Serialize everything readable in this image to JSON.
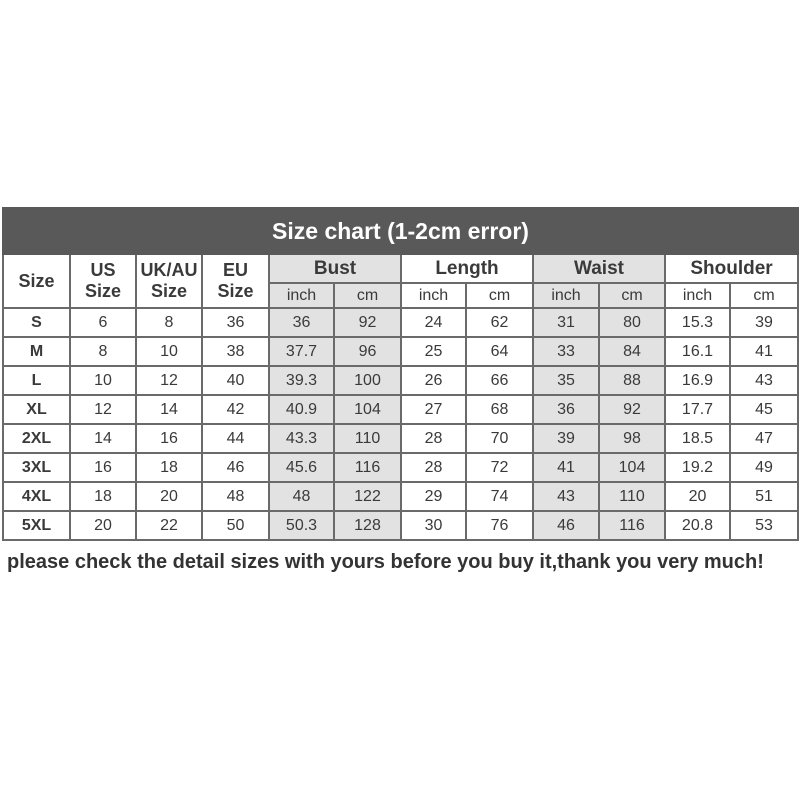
{
  "title": "Size chart (1-2cm error)",
  "headers": {
    "size": "Size",
    "us": [
      "US",
      "Size"
    ],
    "uk": [
      "UK/AU",
      "Size"
    ],
    "eu": [
      "EU",
      "Size"
    ],
    "groups": [
      {
        "label": "Bust",
        "shaded": true
      },
      {
        "label": "Length",
        "shaded": false
      },
      {
        "label": "Waist",
        "shaded": true
      },
      {
        "label": "Shoulder",
        "shaded": false
      }
    ],
    "units": [
      "inch",
      "cm"
    ]
  },
  "colors": {
    "title_bar": "#595959",
    "shade": "#e2e2e2",
    "border": "#6a6a6a"
  },
  "rows": [
    [
      "S",
      "6",
      "8",
      "36",
      "36",
      "92",
      "24",
      "62",
      "31",
      "80",
      "15.3",
      "39"
    ],
    [
      "M",
      "8",
      "10",
      "38",
      "37.7",
      "96",
      "25",
      "64",
      "33",
      "84",
      "16.1",
      "41"
    ],
    [
      "L",
      "10",
      "12",
      "40",
      "39.3",
      "100",
      "26",
      "66",
      "35",
      "88",
      "16.9",
      "43"
    ],
    [
      "XL",
      "12",
      "14",
      "42",
      "40.9",
      "104",
      "27",
      "68",
      "36",
      "92",
      "17.7",
      "45"
    ],
    [
      "2XL",
      "14",
      "16",
      "44",
      "43.3",
      "110",
      "28",
      "70",
      "39",
      "98",
      "18.5",
      "47"
    ],
    [
      "3XL",
      "16",
      "18",
      "46",
      "45.6",
      "116",
      "28",
      "72",
      "41",
      "104",
      "19.2",
      "49"
    ],
    [
      "4XL",
      "18",
      "20",
      "48",
      "48",
      "122",
      "29",
      "74",
      "43",
      "110",
      "20",
      "51"
    ],
    [
      "5XL",
      "20",
      "22",
      "50",
      "50.3",
      "128",
      "30",
      "76",
      "46",
      "116",
      "20.8",
      "53"
    ]
  ],
  "note": "please check the detail sizes with yours before you buy it,thank you very much!"
}
